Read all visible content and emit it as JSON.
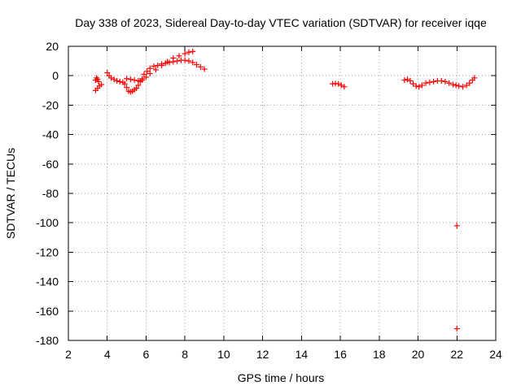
{
  "chart_data": {
    "type": "scatter",
    "title": "Day 338 of 2023, Sidereal Day-to-day VTEC variation (SDTVAR) for receiver iqqe",
    "xlabel": "GPS time / hours",
    "ylabel": "SDTVAR / TECUs",
    "xlim": [
      2,
      24
    ],
    "ylim": [
      -180,
      20
    ],
    "xticks": [
      2,
      4,
      6,
      8,
      10,
      12,
      14,
      16,
      18,
      20,
      22,
      24
    ],
    "yticks": [
      20,
      0,
      -20,
      -40,
      -60,
      -80,
      -100,
      -120,
      -140,
      -160,
      -180
    ],
    "grid": true,
    "marker": "plus",
    "colors": {
      "series": "#ff0000",
      "axes": "#000000",
      "grid": "#a0a0a0"
    },
    "series": [
      {
        "name": "SDTVAR",
        "points": [
          [
            3.4,
            -3.0
          ],
          [
            3.45,
            -1.5
          ],
          [
            3.5,
            -2.5
          ],
          [
            3.55,
            -4.0
          ],
          [
            3.4,
            -10.0
          ],
          [
            3.5,
            -8.5
          ],
          [
            3.6,
            -7.0
          ],
          [
            3.7,
            -6.0
          ],
          [
            4.0,
            2.0
          ],
          [
            4.1,
            0.0
          ],
          [
            4.2,
            -1.5
          ],
          [
            4.35,
            -2.5
          ],
          [
            4.5,
            -3.5
          ],
          [
            4.65,
            -4.0
          ],
          [
            4.8,
            -4.5
          ],
          [
            4.9,
            -5.5
          ],
          [
            5.0,
            -8.0
          ],
          [
            5.1,
            -10.5
          ],
          [
            5.2,
            -11.0
          ],
          [
            5.3,
            -10.5
          ],
          [
            5.4,
            -9.5
          ],
          [
            5.5,
            -8.5
          ],
          [
            5.6,
            -6.5
          ],
          [
            5.7,
            -4.0
          ],
          [
            5.8,
            -2.0
          ],
          [
            5.9,
            1.0
          ],
          [
            6.05,
            3.0
          ],
          [
            6.2,
            5.0
          ],
          [
            6.4,
            6.5
          ],
          [
            6.6,
            7.0
          ],
          [
            6.8,
            8.0
          ],
          [
            7.0,
            8.5
          ],
          [
            7.2,
            9.0
          ],
          [
            7.4,
            9.5
          ],
          [
            7.6,
            10.0
          ],
          [
            7.8,
            10.5
          ],
          [
            8.0,
            10.5
          ],
          [
            8.2,
            10.0
          ],
          [
            8.4,
            9.0
          ],
          [
            8.6,
            7.5
          ],
          [
            8.8,
            6.0
          ],
          [
            9.0,
            4.5
          ],
          [
            5.0,
            -2.0
          ],
          [
            5.2,
            -2.5
          ],
          [
            5.4,
            -3.0
          ],
          [
            5.6,
            -3.5
          ],
          [
            5.8,
            -3.0
          ],
          [
            6.0,
            -1.0
          ],
          [
            6.2,
            1.5
          ],
          [
            6.5,
            4.0
          ],
          [
            6.8,
            7.0
          ],
          [
            7.1,
            9.5
          ],
          [
            7.4,
            12.0
          ],
          [
            7.7,
            13.5
          ],
          [
            8.0,
            15.0
          ],
          [
            8.2,
            16.0
          ],
          [
            8.4,
            16.5
          ],
          [
            15.6,
            -5.5
          ],
          [
            15.75,
            -5.3
          ],
          [
            15.9,
            -5.5
          ],
          [
            16.05,
            -6.5
          ],
          [
            16.2,
            -7.5
          ],
          [
            19.3,
            -3.0
          ],
          [
            19.45,
            -2.5
          ],
          [
            19.6,
            -3.5
          ],
          [
            19.75,
            -5.5
          ],
          [
            19.9,
            -7.0
          ],
          [
            20.05,
            -7.5
          ],
          [
            20.2,
            -6.5
          ],
          [
            20.4,
            -5.0
          ],
          [
            20.6,
            -4.5
          ],
          [
            20.8,
            -4.0
          ],
          [
            21.0,
            -3.5
          ],
          [
            21.2,
            -3.5
          ],
          [
            21.4,
            -4.0
          ],
          [
            21.6,
            -5.0
          ],
          [
            21.8,
            -6.0
          ],
          [
            21.95,
            -6.5
          ],
          [
            22.1,
            -7.0
          ],
          [
            22.3,
            -7.5
          ],
          [
            22.5,
            -6.5
          ],
          [
            22.65,
            -5.0
          ],
          [
            22.8,
            -3.0
          ],
          [
            22.9,
            -1.5
          ],
          [
            22.0,
            -102.0
          ],
          [
            22.0,
            -172.0
          ]
        ]
      }
    ]
  }
}
